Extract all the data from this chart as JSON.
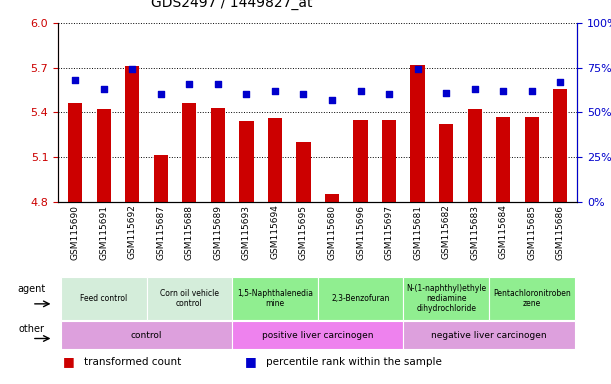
{
  "title": "GDS2497 / 1449827_at",
  "samples": [
    "GSM115690",
    "GSM115691",
    "GSM115692",
    "GSM115687",
    "GSM115688",
    "GSM115689",
    "GSM115693",
    "GSM115694",
    "GSM115695",
    "GSM115680",
    "GSM115696",
    "GSM115697",
    "GSM115681",
    "GSM115682",
    "GSM115683",
    "GSM115684",
    "GSM115685",
    "GSM115686"
  ],
  "transformed_count": [
    5.46,
    5.42,
    5.71,
    5.11,
    5.46,
    5.43,
    5.34,
    5.36,
    5.2,
    4.85,
    5.35,
    5.35,
    5.72,
    5.32,
    5.42,
    5.37,
    5.37,
    5.56
  ],
  "percentile_rank": [
    68,
    63,
    74,
    60,
    66,
    66,
    60,
    62,
    60,
    57,
    62,
    60,
    74,
    61,
    63,
    62,
    62,
    67
  ],
  "ylim_left": [
    4.8,
    6.0
  ],
  "ylim_right": [
    0,
    100
  ],
  "yticks_left": [
    4.8,
    5.1,
    5.4,
    5.7,
    6.0
  ],
  "yticks_right": [
    0,
    25,
    50,
    75,
    100
  ],
  "agent_groups": [
    {
      "label": "Feed control",
      "start": 0,
      "end": 3,
      "color": "#d4edda"
    },
    {
      "label": "Corn oil vehicle\ncontrol",
      "start": 3,
      "end": 6,
      "color": "#d4edda"
    },
    {
      "label": "1,5-Naphthalenedia\nmine",
      "start": 6,
      "end": 9,
      "color": "#90ee90"
    },
    {
      "label": "2,3-Benzofuran",
      "start": 9,
      "end": 12,
      "color": "#90ee90"
    },
    {
      "label": "N-(1-naphthyl)ethyle\nnediamine\ndihydrochloride",
      "start": 12,
      "end": 15,
      "color": "#90ee90"
    },
    {
      "label": "Pentachloronitroben\nzene",
      "start": 15,
      "end": 18,
      "color": "#90ee90"
    }
  ],
  "other_groups": [
    {
      "label": "control",
      "start": 0,
      "end": 6,
      "color": "#dda0dd"
    },
    {
      "label": "positive liver carcinogen",
      "start": 6,
      "end": 12,
      "color": "#ee82ee"
    },
    {
      "label": "negative liver carcinogen",
      "start": 12,
      "end": 18,
      "color": "#dda0dd"
    }
  ],
  "bar_color": "#cc0000",
  "dot_color": "#0000cc",
  "bar_width": 0.5,
  "grid_color": "black",
  "left_tick_color": "#cc0000",
  "right_tick_color": "#0000cc",
  "legend_red_label": "transformed count",
  "legend_blue_label": "percentile rank within the sample",
  "xtick_bg_color": "#d8d8d8",
  "plot_bg_color": "#ffffff"
}
